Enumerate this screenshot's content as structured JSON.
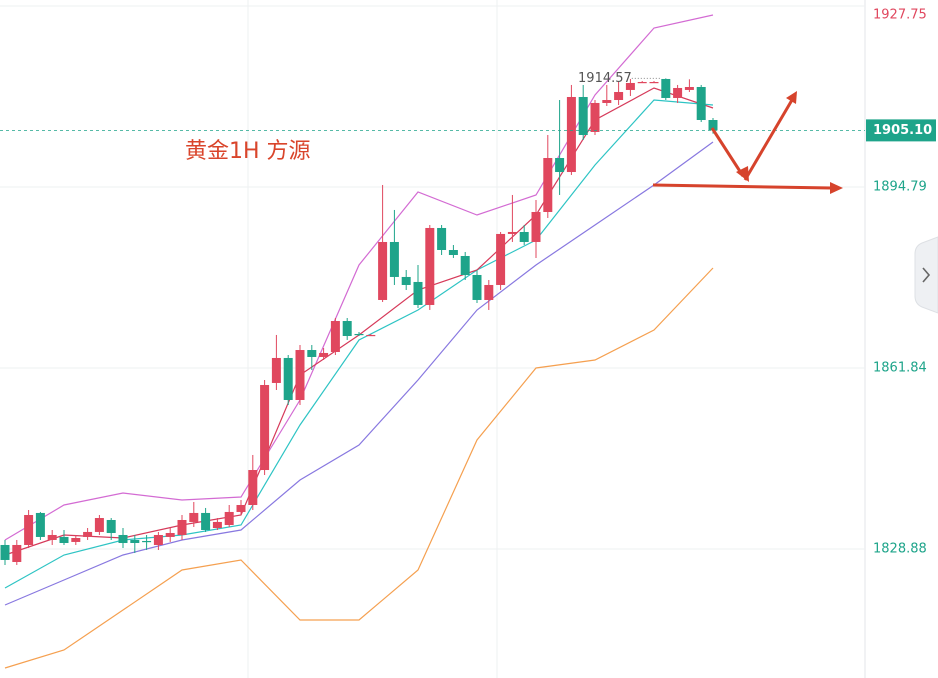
{
  "chart_data": {
    "type": "candlestick",
    "title": "黄金1H 方源",
    "ylim": [
      1805.39,
      1928.84
    ],
    "yticks": [
      1927.75,
      1894.79,
      1861.84,
      1828.88
    ],
    "ytick_colors": [
      "#e0475e",
      "#1ea48a",
      "#1ea48a",
      "#1ea48a"
    ],
    "grid": true,
    "up_color": "#e0475e",
    "down_color": "#1ea48a",
    "open": [
      1829.61,
      1826.51,
      1829.61,
      1835.44,
      1830.52,
      1831.07,
      1830.16,
      1831.07,
      1831.98,
      1834.16,
      1831.43,
      1830.52,
      1830.34,
      1829.61,
      1831.07,
      1831.43,
      1833.8,
      1835.44,
      1832.7,
      1833.25,
      1835.62,
      1836.89,
      1843.26,
      1859.11,
      1863.66,
      1856.01,
      1865.11,
      1863.84,
      1864.75,
      1870.39,
      1868.03,
      1867.85,
      1874.22,
      1884.78,
      1878.41,
      1877.5,
      1873.31,
      1887.33,
      1883.32,
      1882.23,
      1878.77,
      1874.22,
      1876.95,
      1886.24,
      1886.6,
      1884.78,
      1890.24,
      1900.07,
      1897.52,
      1911.18,
      1904.81,
      1910.09,
      1910.63,
      1912.46,
      1913.91,
      1913.91,
      1914.46,
      1911.0,
      1912.46,
      1913.0,
      1906.99
    ],
    "high": [
      1830.52,
      1830.52,
      1835.98,
      1835.62,
      1832.34,
      1832.34,
      1831.43,
      1832.7,
      1835.07,
      1834.52,
      1832.7,
      1831.43,
      1831.43,
      1831.98,
      1832.7,
      1835.07,
      1837.44,
      1836.35,
      1834.52,
      1836.89,
      1837.8,
      1846.0,
      1859.65,
      1867.85,
      1864.2,
      1866.02,
      1866.02,
      1865.48,
      1870.94,
      1870.94,
      1868.39,
      1868.03,
      1895.16,
      1890.61,
      1879.68,
      1880.59,
      1887.87,
      1887.87,
      1884.23,
      1882.96,
      1879.68,
      1877.86,
      1886.6,
      1893.34,
      1887.87,
      1892.43,
      1904.26,
      1910.63,
      1913.37,
      1913.37,
      1910.63,
      1913.37,
      1913.91,
      1914.46,
      1914.09,
      1914.09,
      1914.57,
      1913.37,
      1914.4,
      1913.37,
      1907.36
    ],
    "low": [
      1825.97,
      1825.97,
      1829.06,
      1830.52,
      1829.61,
      1829.61,
      1829.61,
      1830.52,
      1831.43,
      1830.52,
      1829.06,
      1828.15,
      1828.7,
      1828.7,
      1830.16,
      1830.52,
      1832.89,
      1831.98,
      1832.34,
      1832.89,
      1835.07,
      1835.98,
      1842.35,
      1857.83,
      1855.1,
      1855.1,
      1861.47,
      1863.29,
      1864.2,
      1866.94,
      1867.66,
      1867.66,
      1873.85,
      1876.95,
      1876.04,
      1872.76,
      1872.4,
      1882.41,
      1881.87,
      1877.86,
      1873.67,
      1872.4,
      1876.04,
      1884.78,
      1884.23,
      1881.87,
      1889.15,
      1893.34,
      1896.98,
      1903.35,
      1904.26,
      1909.54,
      1909.72,
      1911.36,
      1913.73,
      1913.73,
      1910.63,
      1910.09,
      1912.09,
      1906.63,
      1904.5
    ],
    "close": [
      1826.88,
      1829.61,
      1835.07,
      1831.07,
      1831.43,
      1829.97,
      1830.88,
      1831.98,
      1834.52,
      1831.79,
      1829.97,
      1829.97,
      1830.16,
      1831.43,
      1831.79,
      1834.16,
      1835.44,
      1832.34,
      1833.8,
      1835.62,
      1836.89,
      1843.26,
      1858.74,
      1863.66,
      1856.01,
      1865.11,
      1863.84,
      1864.57,
      1870.39,
      1867.66,
      1867.85,
      1867.85,
      1884.78,
      1878.41,
      1876.95,
      1873.31,
      1887.33,
      1883.32,
      1882.41,
      1878.77,
      1874.22,
      1876.95,
      1886.24,
      1886.6,
      1884.78,
      1890.24,
      1900.07,
      1897.52,
      1911.18,
      1904.26,
      1910.09,
      1910.63,
      1912.09,
      1913.73,
      1913.91,
      1913.91,
      1911.0,
      1912.82,
      1913.0,
      1906.99,
      1905.1
    ],
    "high_label": 1914.57,
    "last_price": {
      "value": 1905.1,
      "label": "1905.10"
    },
    "lines": [
      {
        "color": "#d36bd3",
        "x": [
          0,
          5,
          10,
          15,
          20,
          25,
          30,
          35,
          40,
          45,
          50,
          55,
          60
        ],
        "values": [
          1830.52,
          1836.89,
          1839.08,
          1837.8,
          1838.35,
          1856.01,
          1880.59,
          1893.88,
          1889.69,
          1893.34,
          1911.55,
          1923.74,
          1926.11
        ]
      },
      {
        "color": "#f5a050",
        "x": [
          0,
          5,
          10,
          15,
          20,
          25,
          30,
          35,
          40,
          45,
          50,
          55,
          60
        ],
        "values": [
          1807.21,
          1810.49,
          1817.77,
          1825.06,
          1826.88,
          1815.95,
          1815.95,
          1825.06,
          1848.73,
          1861.84,
          1863.29,
          1868.76,
          1880.04
        ]
      },
      {
        "color": "#8878e0",
        "x": [
          0,
          5,
          10,
          15,
          20,
          25,
          30,
          35,
          40,
          45,
          50,
          55,
          60
        ],
        "values": [
          1818.68,
          1823.24,
          1827.79,
          1830.52,
          1832.34,
          1841.44,
          1847.82,
          1859.65,
          1872.4,
          1880.59,
          1887.87,
          1895.16,
          1902.99
        ]
      },
      {
        "color": "#2ec4c4",
        "x": [
          0,
          5,
          10,
          15,
          20,
          25,
          30,
          35,
          40,
          45,
          50,
          55,
          60
        ],
        "values": [
          1821.78,
          1827.79,
          1830.52,
          1831.43,
          1833.25,
          1851.46,
          1866.94,
          1872.4,
          1879.68,
          1885.14,
          1898.8,
          1910.63,
          1909.72
        ]
      },
      {
        "color": "#d63a5a",
        "x": [
          0,
          5,
          10,
          15,
          20,
          25,
          30,
          35,
          40,
          45,
          50,
          55,
          60
        ],
        "values": [
          1827.79,
          1831.43,
          1830.88,
          1833.25,
          1835.07,
          1860.56,
          1867.85,
          1876.04,
          1879.68,
          1889.69,
          1906.99,
          1912.82,
          1909.18
        ]
      }
    ]
  }
}
